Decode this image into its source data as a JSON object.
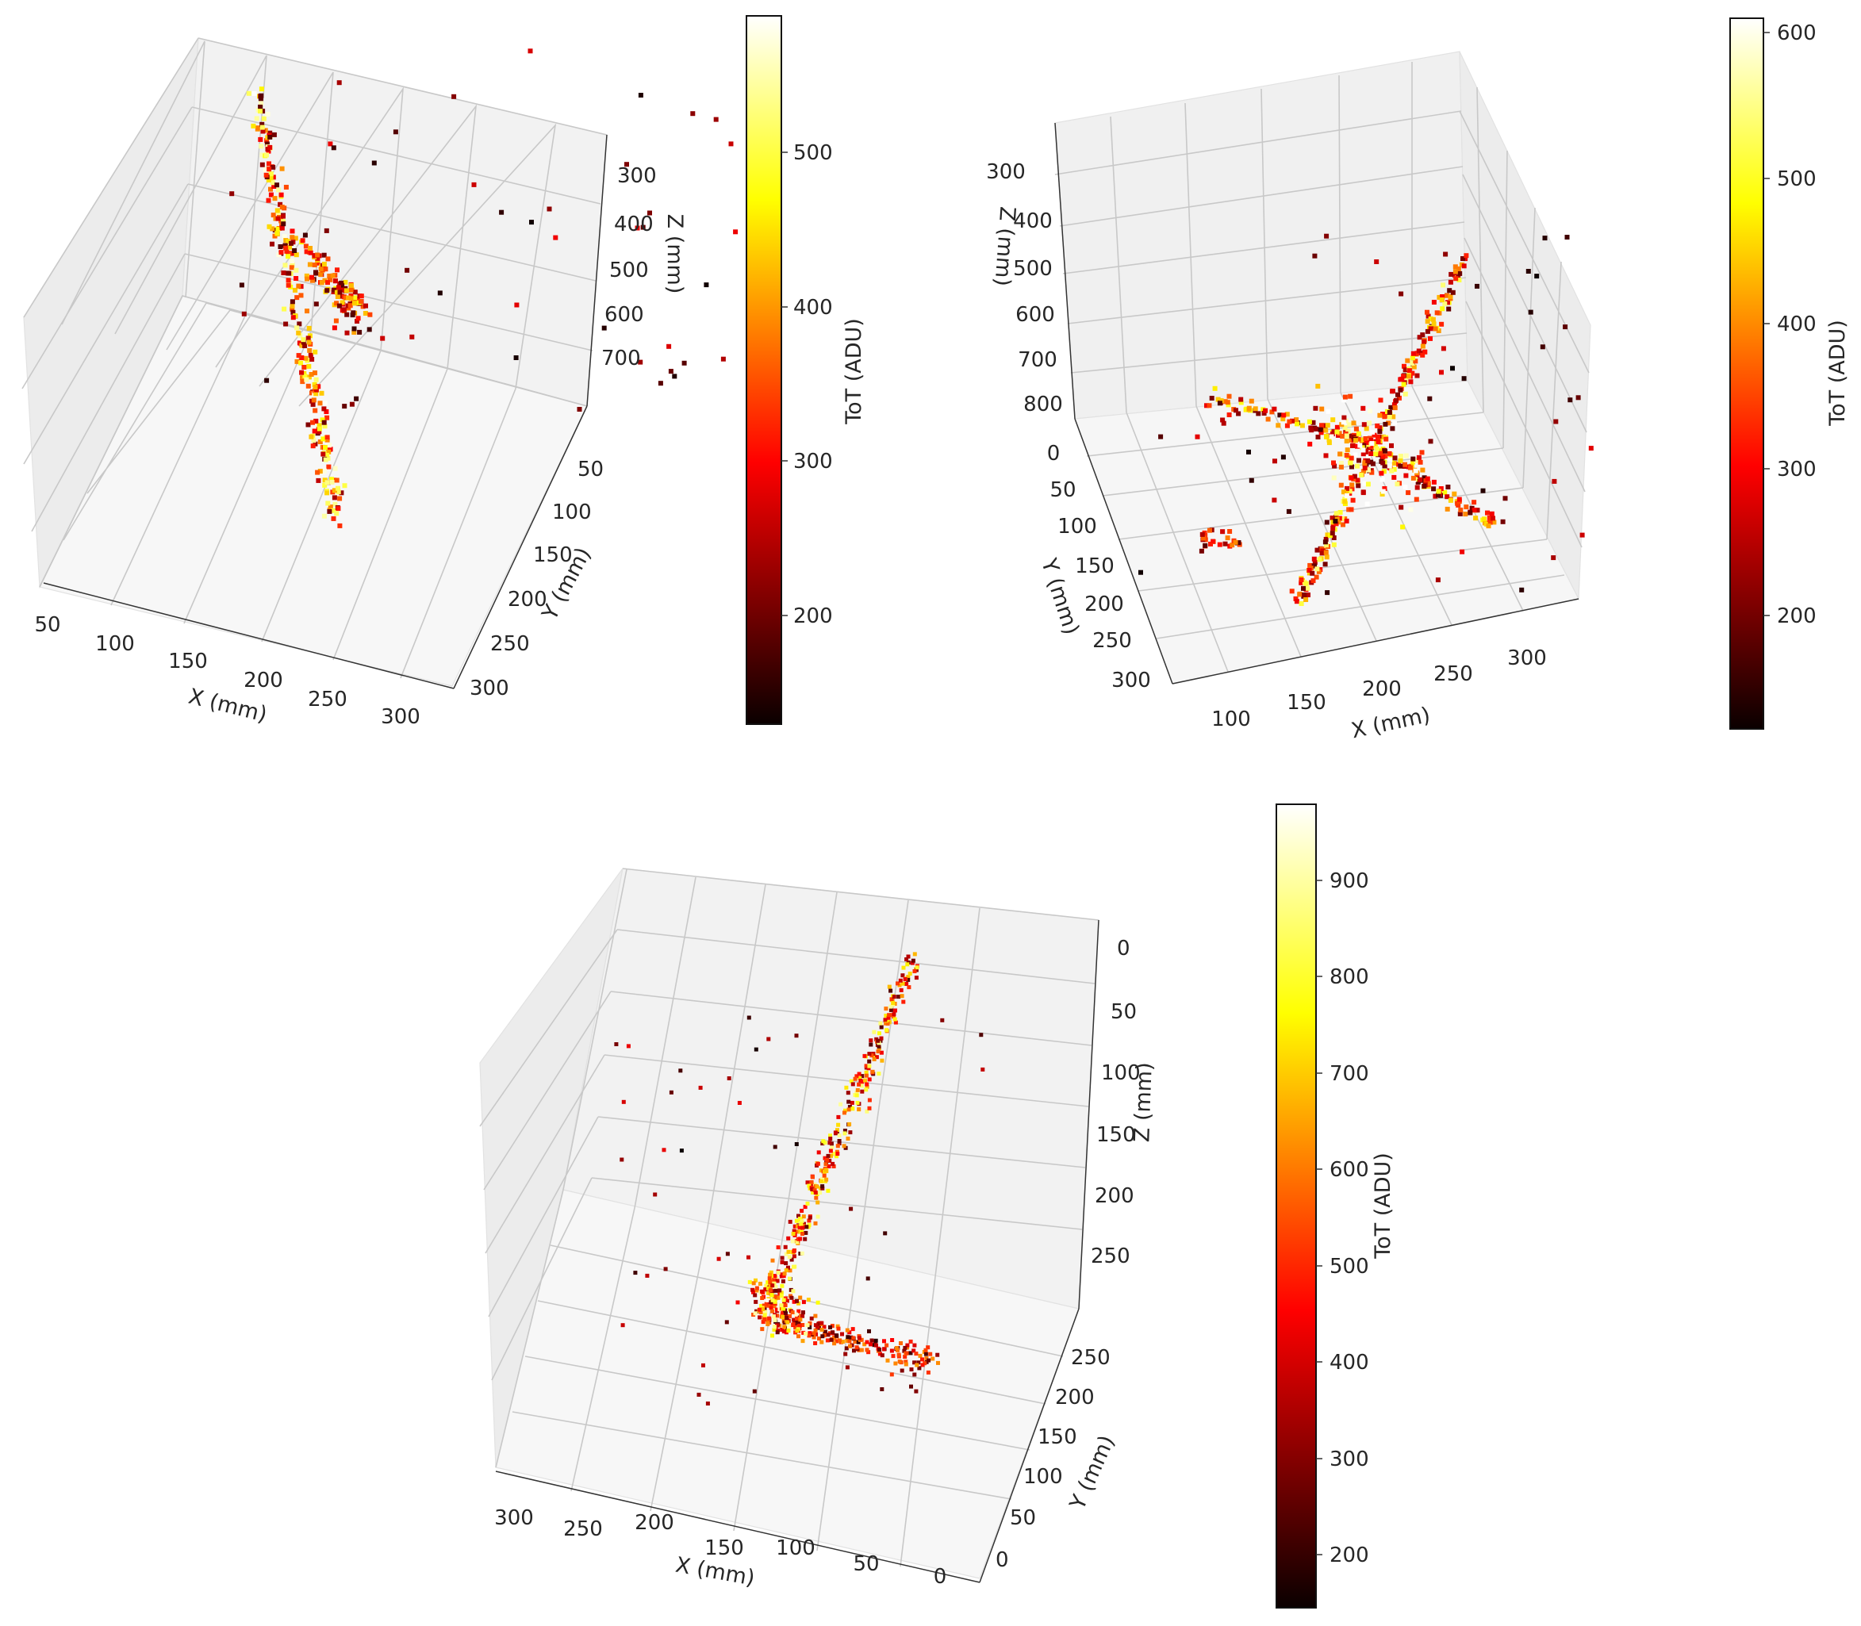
{
  "chart_data": [
    {
      "type": "scatter",
      "projection": "3d",
      "colormap": "hot",
      "xlabel": "X (mm)",
      "ylabel": "Y (mm)",
      "zlabel": "Z (mm)",
      "x_ticks": [
        "50",
        "100",
        "150",
        "200",
        "250",
        "300"
      ],
      "y_ticks": [
        "50",
        "100",
        "150",
        "200",
        "250",
        "300"
      ],
      "z_ticks": [
        "300",
        "400",
        "500",
        "600",
        "700"
      ],
      "xlim": [
        40,
        320
      ],
      "ylim": [
        20,
        310
      ],
      "zlim": [
        200,
        800
      ],
      "colorbar": {
        "label": "ToT (ADU)",
        "ticks": [
          "200",
          "300",
          "400",
          "500"
        ],
        "range": [
          125,
          585
        ]
      },
      "tracks": [
        {
          "from": [
            240,
            220,
            760
          ],
          "to": [
            60,
            60,
            300
          ],
          "tot": 420
        },
        {
          "from": [
            150,
            150,
            520
          ],
          "to": [
            245,
            90,
            540
          ],
          "tot": 380
        }
      ]
    },
    {
      "type": "scatter",
      "projection": "3d",
      "colormap": "hot",
      "xlabel": "X (mm)",
      "ylabel": "Y (mm)",
      "zlabel": "Z (mm)",
      "x_ticks": [
        "100",
        "150",
        "200",
        "250",
        "300"
      ],
      "y_ticks": [
        "0",
        "50",
        "100",
        "150",
        "200",
        "250",
        "300"
      ],
      "z_ticks": [
        "300",
        "400",
        "500",
        "600",
        "700",
        "800"
      ],
      "xlim": [
        70,
        340
      ],
      "ylim": [
        -10,
        310
      ],
      "zlim": [
        250,
        820
      ],
      "colorbar": {
        "label": "ToT (ADU)",
        "ticks": [
          "200",
          "300",
          "400",
          "500",
          "600"
        ],
        "range": [
          120,
          610
        ]
      },
      "tracks": [
        {
          "from": [
            215,
            160,
            650
          ],
          "to": [
            300,
            20,
            350
          ],
          "tot": 400
        },
        {
          "from": [
            215,
            160,
            650
          ],
          "to": [
            130,
            270,
            640
          ],
          "tot": 380
        },
        {
          "from": [
            215,
            160,
            650
          ],
          "to": [
            80,
            90,
            600
          ],
          "tot": 350
        },
        {
          "from": [
            215,
            160,
            650
          ],
          "to": [
            320,
            180,
            700
          ],
          "tot": 360
        }
      ]
    },
    {
      "type": "scatter",
      "projection": "3d",
      "colormap": "hot",
      "xlabel": "X (mm)",
      "ylabel": "Y (mm)",
      "zlabel": "Z (mm)",
      "x_ticks": [
        "0",
        "50",
        "100",
        "150",
        "200",
        "250",
        "300"
      ],
      "y_ticks": [
        "0",
        "50",
        "100",
        "150",
        "200",
        "250"
      ],
      "z_ticks": [
        "0",
        "50",
        "100",
        "150",
        "200",
        "250"
      ],
      "xlim": [
        -10,
        320
      ],
      "ylim": [
        -10,
        280
      ],
      "zlim": [
        -15,
        295
      ],
      "colorbar": {
        "label": "ToT (ADU)",
        "ticks": [
          "200",
          "300",
          "400",
          "500",
          "600",
          "700",
          "800",
          "900"
        ],
        "range": [
          140,
          975
        ]
      },
      "tracks": [
        {
          "from": [
            200,
            180,
            270
          ],
          "to": [
            50,
            260,
            0
          ],
          "tot": 520
        },
        {
          "from": [
            200,
            180,
            270
          ],
          "to": [
            100,
            110,
            290
          ],
          "tot": 420
        }
      ]
    }
  ]
}
